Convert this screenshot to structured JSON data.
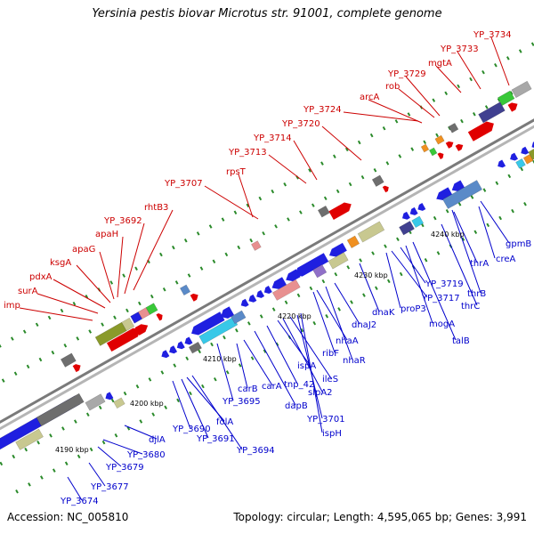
{
  "title": "Yersinia pestis biovar Microtus str. 91001, complete genome",
  "accession": "Accession: NC_005810",
  "topology": "Topology: circular; Length: 4,595,065 bp; Genes: 3,991",
  "colors": {
    "forward_label": "#cc0000",
    "reverse_label": "#0000cc",
    "backbone": "#9a9a9a",
    "tick": "#2a8a2a"
  },
  "kbp_ticks": [
    "4190 kbp",
    "4200 kbp",
    "4210 kbp",
    "4220 kbp",
    "4230 kbp",
    "4240 kbp"
  ],
  "top_labels": [
    "imp",
    "surA",
    "pdxA",
    "ksgA",
    "apaG",
    "apaH",
    "YP_3692",
    "rhtB3",
    "YP_3707",
    "rpsT",
    "YP_3713",
    "YP_3714",
    "YP_3720",
    "YP_3724",
    "arcA",
    "rob",
    "YP_3729",
    "mgtA",
    "YP_3733",
    "YP_3734"
  ],
  "bottom_labels": [
    "YP_3674",
    "YP_3677",
    "YP_3679",
    "YP_3680",
    "djlA",
    "YP_3690",
    "YP_3691",
    "folA",
    "YP_3694",
    "YP_3695",
    "carB",
    "carA",
    "dapB",
    "tnp_42",
    "ispA",
    "slpA2",
    "ileS",
    "YP_3701",
    "ispH",
    "ribF",
    "nhaA",
    "nhaR",
    "dnaJ2",
    "dnaK",
    "proP3",
    "YP_3717",
    "YP_3719",
    "mogA",
    "talB",
    "thrB",
    "thrC",
    "thrA",
    "creA",
    "gpmB"
  ]
}
